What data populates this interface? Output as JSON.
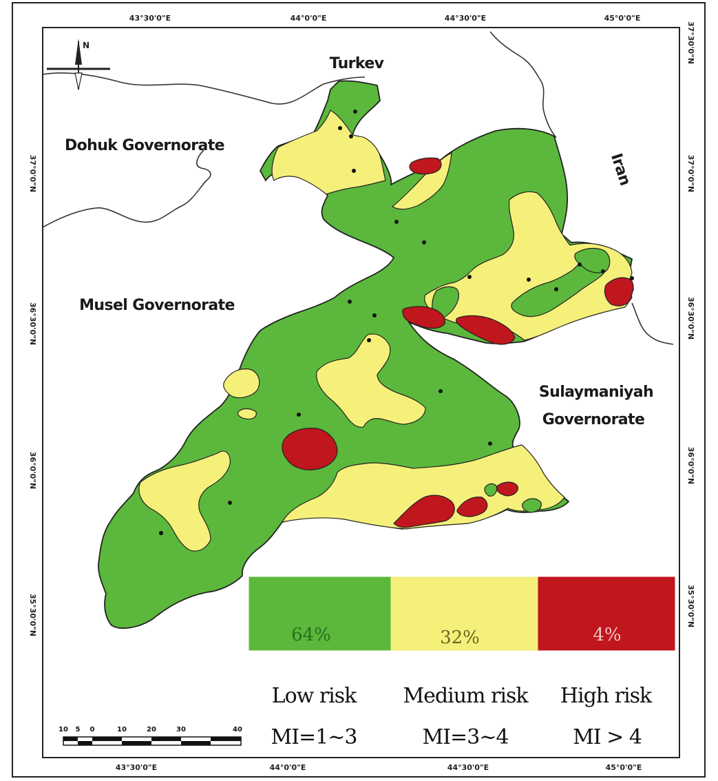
{
  "map": {
    "coordinates": {
      "top": [
        "43°30'0\"E",
        "44°0'0\"E",
        "44°30'0\"E",
        "45°0'0\"E"
      ],
      "bottom": [
        "43°30'0\"E",
        "44°0'0\"E",
        "44°30'0\"E",
        "45°0'0\"E"
      ],
      "left": [
        "37°0'0\"N",
        "36°30'0\"N",
        "36°0'0\"N",
        "35°30'0\"N"
      ],
      "right": [
        "37°0'0\"N",
        "36°30'0\"N",
        "36°0'0\"N",
        "35°30'0\"N"
      ],
      "right_top": "37°30'0\"N"
    },
    "labels": {
      "turkey": "Turkev",
      "dohuk": "Dohuk Governorate",
      "iran": "Iran",
      "musel": "Musel Governorate",
      "sulaymaniyah_line1": "Sulaymaniyah",
      "sulaymaniyah_line2": "Governorate"
    },
    "north_arrow": "N",
    "scale_bar": {
      "ticks": [
        "10",
        "5",
        "0",
        "10",
        "20",
        "30",
        "40"
      ]
    }
  },
  "legend": {
    "classes": [
      {
        "percent": "64%",
        "name": "Low risk",
        "range": "MI=1~3",
        "color": "#5bb83c",
        "percent_color": "#2a6e1e"
      },
      {
        "percent": "32%",
        "name": "Medium risk",
        "range": "MI=3~4",
        "color": "#f5f07a",
        "percent_color": "#6b6a1e"
      },
      {
        "percent": "4%",
        "name": "High risk",
        "range": "MI > 4",
        "color": "#c0161e",
        "percent_color": "#f3c6c6"
      }
    ]
  }
}
